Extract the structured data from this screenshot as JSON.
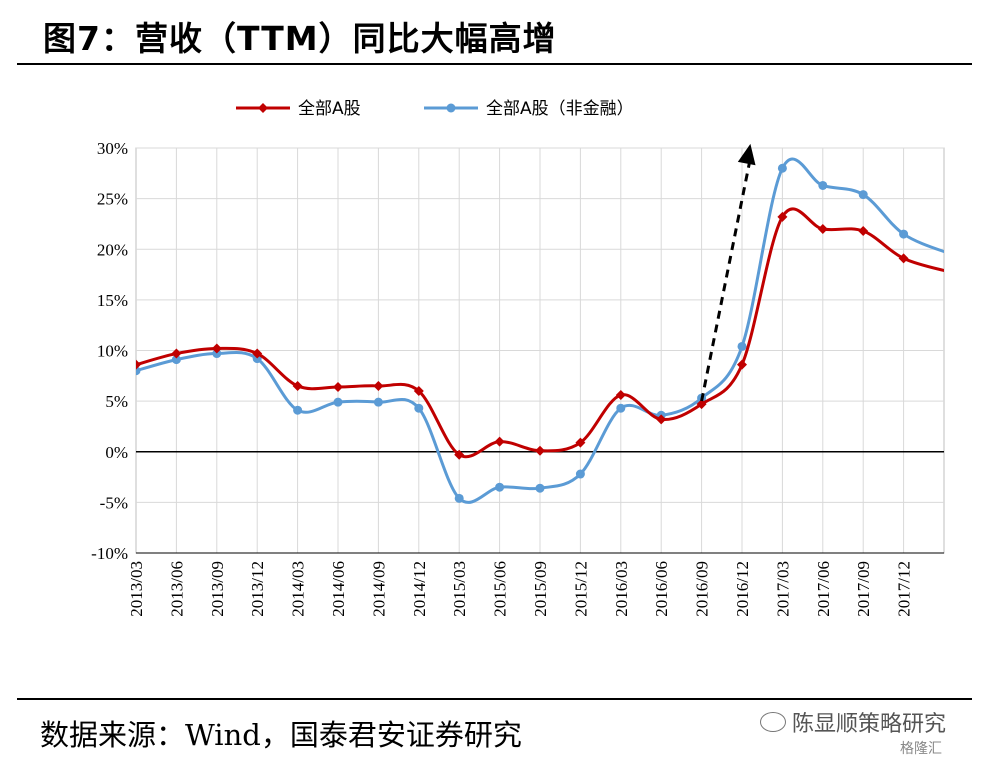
{
  "title": "图7：营收（TTM）同比大幅高增",
  "source": "数据来源：Wind，国泰君安证券研究",
  "watermark": {
    "text": "陈显顺策略研究",
    "icon": "wechat-icon",
    "brand": "格隆汇"
  },
  "chart_data": {
    "type": "line",
    "categories": [
      "2013/03",
      "2013/06",
      "2013/09",
      "2013/12",
      "2014/03",
      "2014/06",
      "2014/09",
      "2014/12",
      "2015/03",
      "2015/06",
      "2015/09",
      "2015/12",
      "2016/03",
      "2016/06",
      "2016/09",
      "2016/12",
      "2017/03",
      "2017/06",
      "2017/09",
      "2017/12"
    ],
    "series": [
      {
        "name": "全部A股",
        "color": "#C00000",
        "marker": "diamond",
        "values": [
          8.6,
          9.7,
          10.2,
          9.7,
          6.5,
          6.4,
          6.5,
          6.0,
          -0.3,
          1.0,
          0.1,
          0.9,
          5.6,
          3.2,
          4.7,
          8.6,
          23.2,
          22.0,
          21.8,
          19.1
        ]
      },
      {
        "name": "全部A股（非金融）",
        "color": "#5B9BD5",
        "marker": "circle",
        "values": [
          8.0,
          9.1,
          9.7,
          9.2,
          4.1,
          4.9,
          4.9,
          4.3,
          -4.6,
          -3.5,
          -3.6,
          -2.2,
          4.3,
          3.6,
          5.3,
          10.4,
          28.0,
          26.3,
          25.4,
          21.5
        ]
      }
    ],
    "yticks": [
      "30%",
      "25%",
      "20%",
      "15%",
      "10%",
      "5%",
      "0%",
      "-5%",
      "-10%"
    ],
    "ylim": [
      -10,
      30
    ],
    "grid": true,
    "legend": "top",
    "annotation": {
      "type": "dashed-arrow",
      "from": {
        "x": "2016/09",
        "y": 6
      },
      "to": {
        "x": "2017/03",
        "y": 31
      }
    }
  }
}
